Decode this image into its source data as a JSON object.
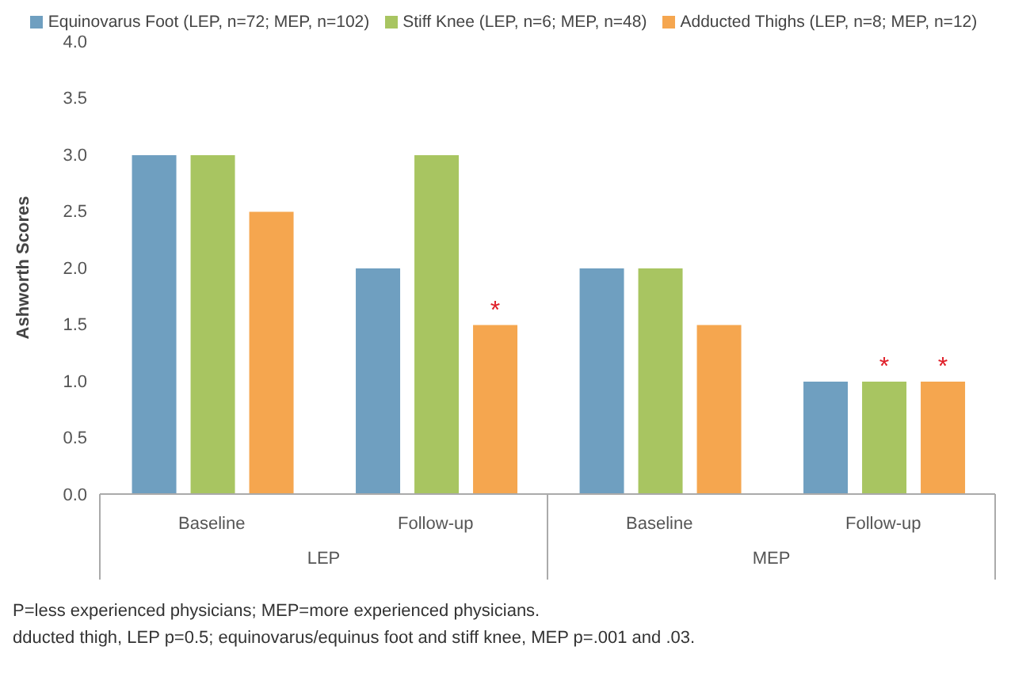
{
  "chart_data": {
    "type": "bar",
    "ylabel": "Ashworth Scores",
    "categories": [
      "Baseline",
      "Follow-up",
      "Baseline",
      "Follow-up"
    ],
    "series": [
      {
        "name": "Equinovarus Foot (LEP, n=72; MEP, n=102)",
        "color": "#6f9fc0",
        "values": [
          3,
          2,
          2,
          1
        ]
      },
      {
        "name": "Stiff Knee (LEP, n=6; MEP, n=48)",
        "color": "#a8c561",
        "values": [
          3,
          3,
          2,
          1
        ],
        "value_labels": [
          null,
          null,
          null,
          "*"
        ]
      },
      {
        "name": "Adducted Thighs (LEP, n=8; MEP, n=12)",
        "color": "#f5a64f",
        "values": [
          2.5,
          1.5,
          1.5,
          1
        ],
        "value_labels": [
          null,
          "*",
          null,
          "*"
        ]
      }
    ],
    "ylim": [
      0,
      4
    ],
    "yticks": [
      {
        "value": 0,
        "label": "0.0"
      },
      {
        "value": 0.5,
        "label": "0.5"
      },
      {
        "value": 1,
        "label": "1.0"
      },
      {
        "value": 1.5,
        "label": "1.5"
      },
      {
        "value": 2,
        "label": "2.0"
      },
      {
        "value": 2.5,
        "label": "2.5"
      },
      {
        "value": 3,
        "label": "3.0"
      },
      {
        "value": 3.5,
        "label": "3.5"
      },
      {
        "value": 4,
        "label": "4.0"
      }
    ],
    "grid": false,
    "legend": "top",
    "annotations": [
      "LEP",
      "MEP",
      "P=less experienced physicians; MEP=more experienced physicians.",
      "dducted thigh, LEP p=0.5; equinovarus/equinus foot and stiff knee, MEP p=.001 and .03."
    ]
  }
}
